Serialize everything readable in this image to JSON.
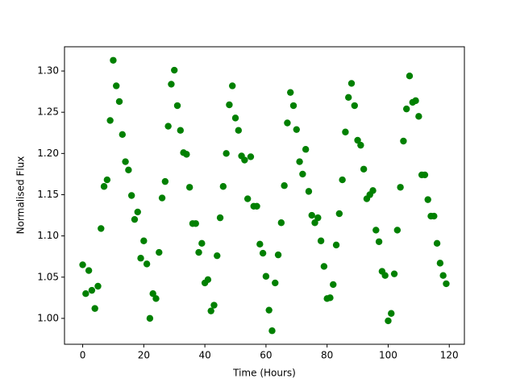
{
  "chart_data": {
    "type": "scatter",
    "x_label": "Time (Hours)",
    "y_label": "Normalised Flux",
    "color": "#008000",
    "x": [
      0,
      1,
      2,
      3,
      4,
      5,
      6,
      7,
      8,
      9,
      10,
      11,
      12,
      13,
      14,
      15,
      16,
      17,
      18,
      19,
      20,
      21,
      22,
      23,
      24,
      25,
      26,
      27,
      28,
      29,
      30,
      31,
      32,
      33,
      34,
      35,
      36,
      37,
      38,
      39,
      40,
      41,
      42,
      43,
      44,
      45,
      46,
      47,
      48,
      49,
      50,
      51,
      52,
      53,
      54,
      55,
      56,
      57,
      58,
      59,
      60,
      61,
      62,
      63,
      64,
      65,
      66,
      67,
      68,
      69,
      70,
      71,
      72,
      73,
      74,
      75,
      76,
      77,
      78,
      79,
      80,
      81,
      82,
      83,
      84,
      85,
      86,
      87,
      88,
      89,
      90,
      91,
      92,
      93,
      94,
      95,
      96,
      97,
      98,
      99,
      100,
      101,
      102,
      103,
      104,
      105,
      106,
      107,
      108,
      109,
      110,
      111,
      112,
      113,
      114,
      115,
      116,
      117,
      118,
      119
    ],
    "values": [
      1.065,
      1.03,
      1.058,
      1.034,
      1.012,
      1.039,
      1.109,
      1.16,
      1.168,
      1.24,
      1.313,
      1.282,
      1.263,
      1.223,
      1.19,
      1.18,
      1.149,
      1.12,
      1.129,
      1.073,
      1.094,
      1.066,
      1.0,
      1.03,
      1.024,
      1.08,
      1.146,
      1.166,
      1.233,
      1.284,
      1.301,
      1.258,
      1.228,
      1.201,
      1.199,
      1.159,
      1.115,
      1.115,
      1.08,
      1.091,
      1.043,
      1.047,
      1.009,
      1.016,
      1.076,
      1.122,
      1.16,
      1.2,
      1.259,
      1.282,
      1.243,
      1.228,
      1.197,
      1.192,
      1.145,
      1.196,
      1.136,
      1.136,
      1.09,
      1.079,
      1.051,
      1.01,
      0.985,
      1.043,
      1.077,
      1.116,
      1.161,
      1.237,
      1.274,
      1.258,
      1.229,
      1.19,
      1.175,
      1.205,
      1.154,
      1.125,
      1.116,
      1.122,
      1.094,
      1.063,
      1.024,
      1.025,
      1.041,
      1.089,
      1.127,
      1.168,
      1.226,
      1.268,
      1.285,
      1.258,
      1.216,
      1.21,
      1.181,
      1.145,
      1.15,
      1.155,
      1.107,
      1.093,
      1.057,
      1.052,
      0.997,
      1.006,
      1.054,
      1.107,
      1.159,
      1.215,
      1.254,
      1.294,
      1.262,
      1.264,
      1.245,
      1.174,
      1.174,
      1.144,
      1.124,
      1.124,
      1.091,
      1.067,
      1.052,
      1.042
    ],
    "xlim": [
      -5.95,
      124.95
    ],
    "xticks": [
      0,
      20,
      40,
      60,
      80,
      100,
      120
    ],
    "ylim": [
      0.9686,
      1.3294
    ],
    "yticks": [
      {
        "value": 1.0,
        "label": "1.00"
      },
      {
        "value": 1.05,
        "label": "1.05"
      },
      {
        "value": 1.1,
        "label": "1.10"
      },
      {
        "value": 1.15,
        "label": "1.15"
      },
      {
        "value": 1.2,
        "label": "1.20"
      },
      {
        "value": 1.25,
        "label": "1.25"
      },
      {
        "value": 1.3,
        "label": "1.30"
      }
    ],
    "grid": false
  }
}
